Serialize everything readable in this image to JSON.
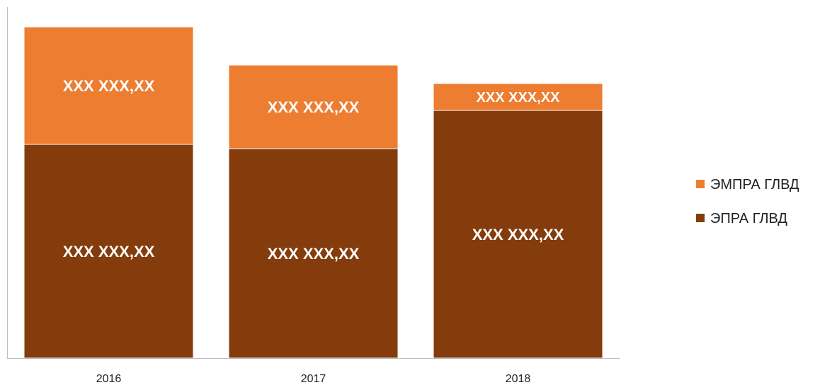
{
  "chart_data": {
    "type": "bar",
    "stacked": true,
    "categories": [
      "2016",
      "2017",
      "2018"
    ],
    "series": [
      {
        "name": "ЭПРА ГЛВД",
        "color": "#843C0C",
        "values": [
          302,
          296,
          350
        ],
        "labels": [
          "XXX XXX,XX",
          "XXX XXX,XX",
          "XXX XXX,XX"
        ]
      },
      {
        "name": "ЭМПРА ГЛВД",
        "color": "#ED7D31",
        "values": [
          166,
          118,
          38
        ],
        "labels": [
          "XXX XXX,XX",
          "XXX XXX,XX",
          "XXX XXX,XX"
        ]
      }
    ],
    "legend_order": [
      1,
      0
    ],
    "legend_position": "right",
    "ylim": [
      0,
      478
    ],
    "grid": false,
    "title": "",
    "xlabel": "",
    "ylabel": ""
  }
}
